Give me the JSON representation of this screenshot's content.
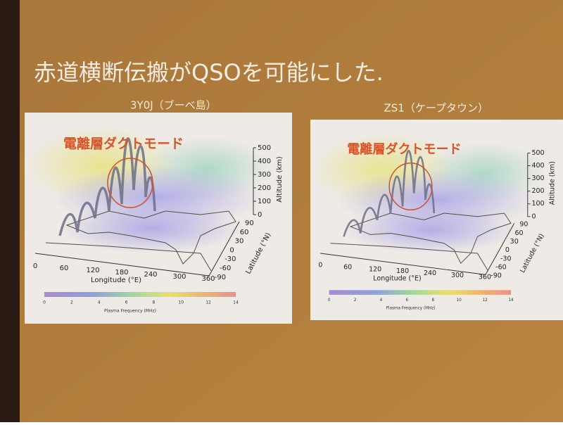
{
  "title": "赤道横断伝搬がQSOを可能にした.",
  "panels": [
    {
      "caption": "3Y0J（ブーベ島）",
      "annotation": "電離層ダクトモード",
      "x_label": "Longitude (°E)",
      "x_ticks": [
        0,
        60,
        120,
        180,
        240,
        300,
        360
      ],
      "lat_label": "Latitude (°N)",
      "lat_ticks": [
        90,
        60,
        30,
        0,
        -30,
        -60,
        -90
      ],
      "alt_label": "Altitude (km)",
      "alt_ticks": [
        0,
        100,
        200,
        300,
        400,
        500
      ],
      "colorbar_label": "Plasma Frequency (MHz)",
      "colorbar_ticks": [
        0,
        2,
        4,
        6,
        8,
        10,
        12,
        14
      ]
    },
    {
      "caption": "ZS1（ケープタウン）",
      "annotation": "電離層ダクトモード",
      "x_label": "Longitude (°E)",
      "x_ticks": [
        0,
        60,
        120,
        180,
        240,
        300,
        360
      ],
      "lat_label": "Latitude (°N)",
      "lat_ticks": [
        90,
        60,
        30,
        0,
        -30,
        -60,
        -90
      ],
      "alt_label": "Altitude (km)",
      "alt_ticks": [
        0,
        100,
        200,
        300,
        400,
        500
      ],
      "colorbar_label": "Plasma Frequency (MHz)",
      "colorbar_ticks": [
        0,
        2,
        4,
        6,
        8,
        10,
        12,
        14
      ]
    }
  ]
}
